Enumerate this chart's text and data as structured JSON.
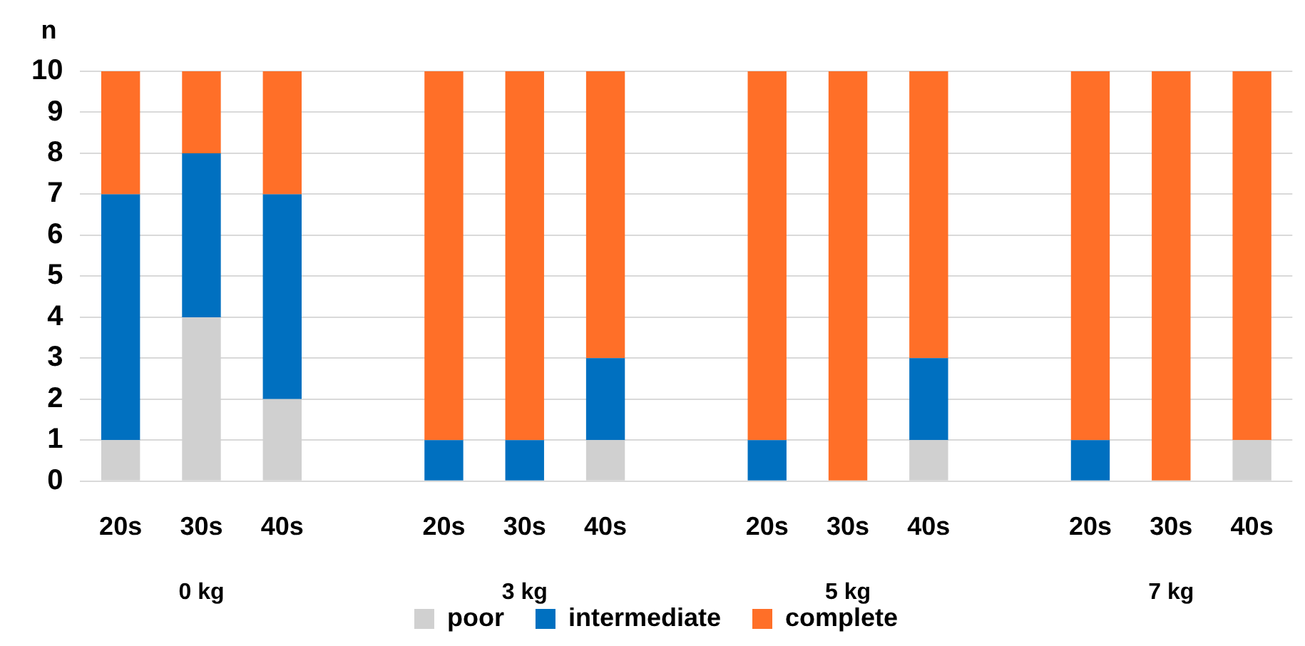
{
  "chart_data": {
    "type": "bar",
    "stacked": true,
    "ylabel": "n",
    "categories": [
      "20s",
      "30s",
      "40s",
      null,
      "20s",
      "30s",
      "40s",
      null,
      "20s",
      "30s",
      "40s",
      null,
      "20s",
      "30s",
      "40s"
    ],
    "series": [
      {
        "name": "poor",
        "color": "#d0d0d0",
        "values": [
          1,
          4,
          2,
          null,
          0,
          0,
          1,
          null,
          0,
          0,
          1,
          null,
          0,
          0,
          1
        ]
      },
      {
        "name": "intermediate",
        "color": "#0070c0",
        "values": [
          6,
          4,
          5,
          null,
          1,
          1,
          2,
          null,
          1,
          0,
          2,
          null,
          1,
          0,
          0
        ]
      },
      {
        "name": "complete",
        "color": "#ff6f28",
        "values": [
          3,
          2,
          3,
          null,
          9,
          9,
          7,
          null,
          9,
          10,
          7,
          null,
          9,
          10,
          9
        ]
      }
    ],
    "annotations": [
      "0 kg",
      "3 kg",
      "5 kg",
      "7 kg"
    ],
    "ylim": [
      0,
      10
    ],
    "yticks": [
      0,
      1,
      2,
      3,
      4,
      5,
      6,
      7,
      8,
      9,
      10
    ],
    "grid": "y",
    "legend": "bottom"
  }
}
